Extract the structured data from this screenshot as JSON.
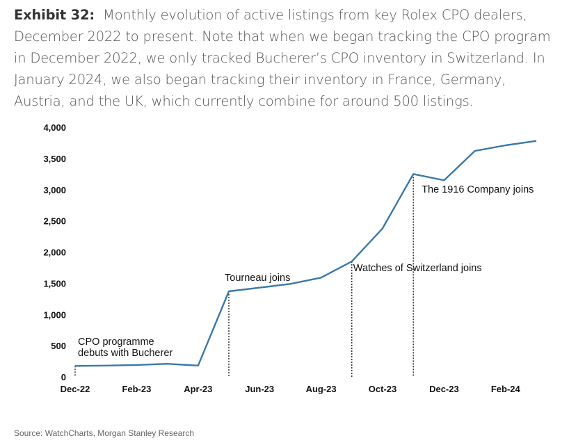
{
  "title": {
    "label": "Exhibit 32:",
    "text": "Monthly evolution of active listings from key Rolex CPO dealers, December 2022 to present. Note that when we began tracking the CPO program in December 2022, we only tracked Bucherer’s CPO inventory in Switzerland. In January 2024, we also began tracking their inventory in France, Germany, Austria, and the UK, which currently combine for around 500 listings."
  },
  "source": "Source: WatchCharts, Morgan Stanley Research",
  "colors": {
    "line": "#3b78a8",
    "annotation_line": "#000000"
  },
  "chart_data": {
    "type": "line",
    "title": "",
    "xlabel": "",
    "ylabel": "",
    "ylim": [
      0,
      4000
    ],
    "yticks": [
      "0",
      "500",
      "1,000",
      "1,500",
      "2,000",
      "2,500",
      "3,000",
      "3,500",
      "4,000"
    ],
    "grid": false,
    "legend": "none",
    "x": [
      "Dec-22",
      "Jan-23",
      "Feb-23",
      "Mar-23",
      "Apr-23",
      "May-23",
      "Jun-23",
      "Jul-23",
      "Aug-23",
      "Sep-23",
      "Oct-23",
      "Nov-23",
      "Dec-23",
      "Jan-24",
      "Feb-24",
      "Mar-24"
    ],
    "xtick_labels": [
      "Dec-22",
      "Feb-23",
      "Apr-23",
      "Jun-23",
      "Aug-23",
      "Oct-23",
      "Dec-23",
      "Feb-24"
    ],
    "series": [
      {
        "values": [
          175,
          180,
          190,
          210,
          180,
          1370,
          1430,
          1490,
          1590,
          1850,
          2380,
          3250,
          3150,
          3620,
          3710,
          3780
        ]
      }
    ],
    "annotations": [
      {
        "x": "Dec-22",
        "lines": [
          "CPO programme",
          "debuts with Bucherer"
        ]
      },
      {
        "x": "May-23",
        "lines": [
          "Tourneau joins"
        ]
      },
      {
        "x": "Sep-23",
        "lines": [
          "Watches of Switzerland joins"
        ]
      },
      {
        "x": "Nov-23",
        "lines": [
          "The 1916 Company joins"
        ]
      }
    ]
  }
}
